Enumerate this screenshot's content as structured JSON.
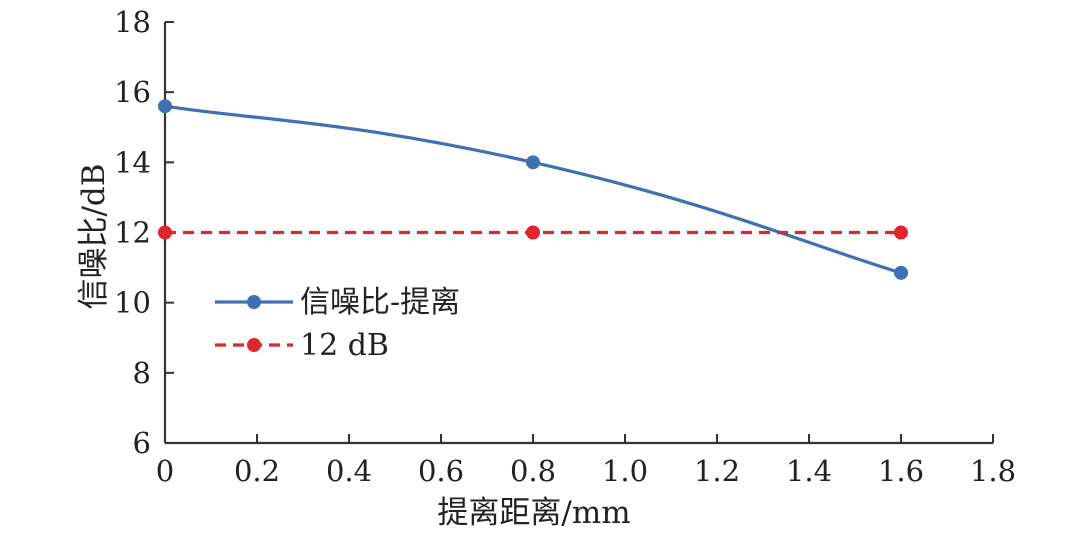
{
  "chart_data": {
    "type": "line",
    "xlabel": "提离距离/mm",
    "ylabel": "信噪比/dB",
    "xlim": [
      0,
      1.8
    ],
    "ylim": [
      6,
      18
    ],
    "xticks": [
      "0",
      "0.2",
      "0.4",
      "0.6",
      "0.8",
      "1.0",
      "1.2",
      "1.4",
      "1.6",
      "1.8"
    ],
    "yticks": [
      "6",
      "8",
      "10",
      "12",
      "14",
      "16",
      "18"
    ],
    "grid": false,
    "legend_position": "middle-left",
    "series": [
      {
        "name": "信噪比-提离",
        "x": [
          0,
          0.8,
          1.6
        ],
        "y": [
          15.6,
          14.0,
          10.85
        ],
        "color": "#3f6fb5",
        "style": "solid",
        "smooth": true
      },
      {
        "name": "12 dB",
        "x": [
          0,
          0.8,
          1.6
        ],
        "y": [
          12,
          12,
          12
        ],
        "color": "#e0262c",
        "style": "dashed",
        "smooth": false
      }
    ]
  }
}
